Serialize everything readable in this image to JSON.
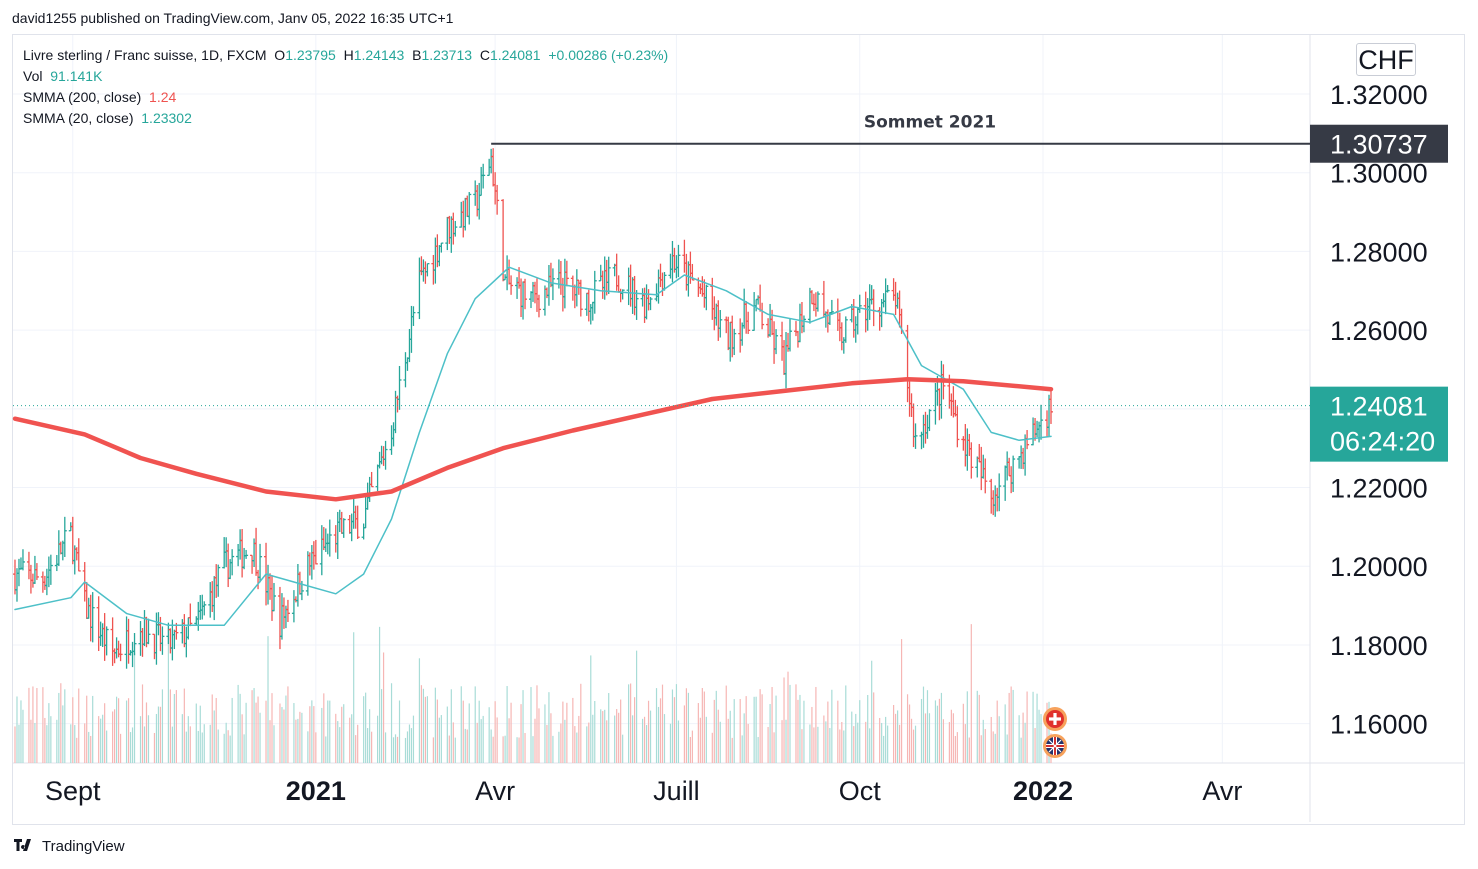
{
  "publisher": "david1255 published on TradingView.com, Janv 05, 2022 16:35 UTC+1",
  "footer": {
    "brand": "TradingView",
    "logo_icon": "tradingview-logo-icon"
  },
  "currency": "CHF",
  "legend": {
    "symbol": "Livre sterling / Franc suisse, 1D, FXCM",
    "open_label": "O",
    "open": "1.23795",
    "high_label": "H",
    "high": "1.24143",
    "low_label": "B",
    "low": "1.23713",
    "close_label": "C",
    "close": "1.24081",
    "change": "+0.00286 (+0.23%)",
    "vol_label": "Vol",
    "vol": "91.141K",
    "smma200_label": "SMMA (200, close)",
    "smma200": "1.24",
    "smma20_label": "SMMA (20, close)",
    "smma20": "1.23302"
  },
  "price_badges": {
    "peak_value": "1.30737",
    "last_value": "1.24081",
    "countdown": "06:24:20"
  },
  "annotation": {
    "text": "Sommet 2021",
    "level": 1.30737
  },
  "colors": {
    "up": "#26a69a",
    "down": "#ef5350",
    "smma200": "#f05350",
    "smma20": "#4dc0c8",
    "peak_badge": "#363a45",
    "last_badge": "#26a69a"
  },
  "chart_data": {
    "type": "candlestick",
    "title": "Livre sterling / Franc suisse, 1D, FXCM",
    "y_ticks": [
      "1.32000",
      "1.30000",
      "1.28000",
      "1.26000",
      "1.24000",
      "1.22000",
      "1.20000",
      "1.18000",
      "1.16000"
    ],
    "y_tick_values": [
      1.32,
      1.3,
      1.28,
      1.26,
      1.24,
      1.22,
      1.2,
      1.18,
      1.16
    ],
    "ylim": [
      1.15,
      1.335
    ],
    "x_ticks": [
      {
        "label": "Sept",
        "date": "2020-09-01",
        "bold": false
      },
      {
        "label": "2021",
        "date": "2021-01-01",
        "bold": true
      },
      {
        "label": "Avr",
        "date": "2021-04-01",
        "bold": false
      },
      {
        "label": "Juill",
        "date": "2021-07-01",
        "bold": false
      },
      {
        "label": "Oct",
        "date": "2021-10-01",
        "bold": false
      },
      {
        "label": "2022",
        "date": "2022-01-01",
        "bold": true
      },
      {
        "label": "Avr",
        "date": "2022-04-01",
        "bold": false
      }
    ],
    "xlim": [
      "2020-08-02",
      "2022-05-15"
    ],
    "price_path": [
      [
        "2020-08-03",
        1.198
      ],
      [
        "2020-08-17",
        1.197
      ],
      [
        "2020-08-31",
        1.208
      ],
      [
        "2020-09-07",
        1.19
      ],
      [
        "2020-09-21",
        1.178
      ],
      [
        "2020-10-05",
        1.184
      ],
      [
        "2020-10-19",
        1.18
      ],
      [
        "2020-11-02",
        1.185
      ],
      [
        "2020-11-16",
        1.2
      ],
      [
        "2020-11-30",
        1.205
      ],
      [
        "2020-12-14",
        1.186
      ],
      [
        "2020-12-28",
        1.2
      ],
      [
        "2021-01-11",
        1.208
      ],
      [
        "2021-01-25",
        1.212
      ],
      [
        "2021-02-08",
        1.235
      ],
      [
        "2021-02-22",
        1.272
      ],
      [
        "2021-03-08",
        1.286
      ],
      [
        "2021-03-22",
        1.292
      ],
      [
        "2021-03-30",
        1.304
      ],
      [
        "2021-04-06",
        1.272
      ],
      [
        "2021-04-20",
        1.268
      ],
      [
        "2021-05-04",
        1.272
      ],
      [
        "2021-05-18",
        1.268
      ],
      [
        "2021-06-01",
        1.274
      ],
      [
        "2021-06-15",
        1.267
      ],
      [
        "2021-06-29",
        1.278
      ],
      [
        "2021-07-13",
        1.27
      ],
      [
        "2021-07-27",
        1.258
      ],
      [
        "2021-08-10",
        1.266
      ],
      [
        "2021-08-24",
        1.252
      ],
      [
        "2021-09-07",
        1.27
      ],
      [
        "2021-09-21",
        1.258
      ],
      [
        "2021-10-05",
        1.266
      ],
      [
        "2021-10-19",
        1.268
      ],
      [
        "2021-10-29",
        1.232
      ],
      [
        "2021-11-12",
        1.246
      ],
      [
        "2021-11-22",
        1.232
      ],
      [
        "2021-12-06",
        1.218
      ],
      [
        "2021-12-20",
        1.228
      ],
      [
        "2022-01-05",
        1.2408
      ]
    ],
    "smma20": [
      [
        "2020-08-03",
        1.189
      ],
      [
        "2020-08-31",
        1.192
      ],
      [
        "2020-09-07",
        1.196
      ],
      [
        "2020-09-28",
        1.188
      ],
      [
        "2020-10-19",
        1.185
      ],
      [
        "2020-11-16",
        1.185
      ],
      [
        "2020-12-07",
        1.198
      ],
      [
        "2020-12-21",
        1.196
      ],
      [
        "2021-01-11",
        1.193
      ],
      [
        "2021-01-25",
        1.198
      ],
      [
        "2021-02-08",
        1.212
      ],
      [
        "2021-02-22",
        1.234
      ],
      [
        "2021-03-08",
        1.254
      ],
      [
        "2021-03-22",
        1.268
      ],
      [
        "2021-04-08",
        1.276
      ],
      [
        "2021-04-29",
        1.272
      ],
      [
        "2021-05-24",
        1.27
      ],
      [
        "2021-06-21",
        1.269
      ],
      [
        "2021-07-05",
        1.274
      ],
      [
        "2021-07-26",
        1.27
      ],
      [
        "2021-08-16",
        1.264
      ],
      [
        "2021-09-06",
        1.262
      ],
      [
        "2021-09-27",
        1.266
      ],
      [
        "2021-10-18",
        1.264
      ],
      [
        "2021-11-01",
        1.251
      ],
      [
        "2021-11-22",
        1.245
      ],
      [
        "2021-12-06",
        1.234
      ],
      [
        "2021-12-20",
        1.232
      ],
      [
        "2022-01-05",
        1.233
      ]
    ],
    "smma200": [
      [
        "2020-08-03",
        1.2375
      ],
      [
        "2020-09-07",
        1.2335
      ],
      [
        "2020-10-05",
        1.2275
      ],
      [
        "2020-11-02",
        1.2235
      ],
      [
        "2020-12-07",
        1.219
      ],
      [
        "2021-01-11",
        1.217
      ],
      [
        "2021-02-08",
        1.219
      ],
      [
        "2021-03-08",
        1.225
      ],
      [
        "2021-04-05",
        1.23
      ],
      [
        "2021-05-10",
        1.2345
      ],
      [
        "2021-06-14",
        1.2385
      ],
      [
        "2021-07-19",
        1.2425
      ],
      [
        "2021-08-23",
        1.2445
      ],
      [
        "2021-09-27",
        1.2465
      ],
      [
        "2021-10-25",
        1.2475
      ],
      [
        "2021-11-22",
        1.247
      ],
      [
        "2022-01-05",
        1.245
      ]
    ]
  }
}
